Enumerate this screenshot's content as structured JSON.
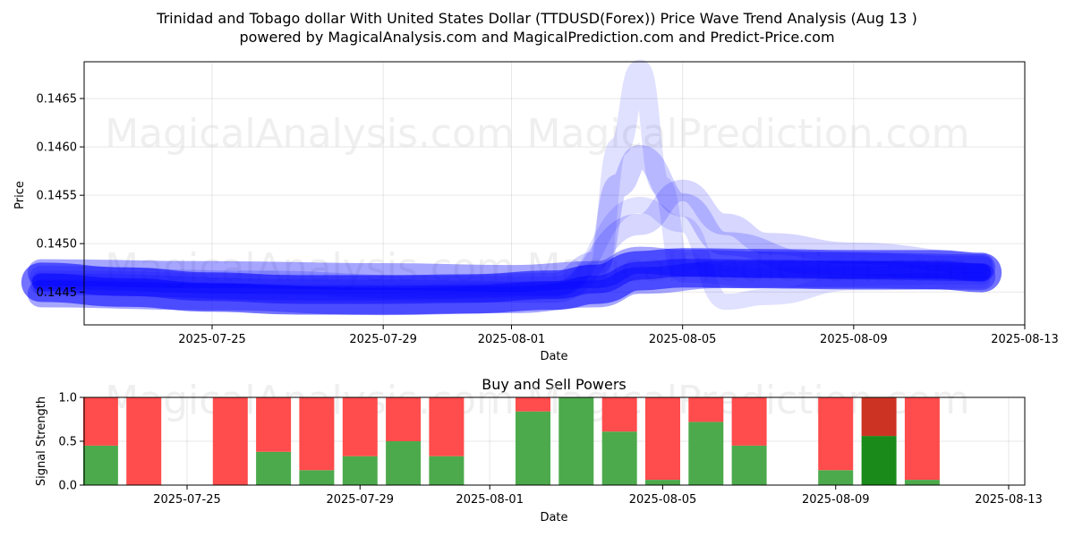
{
  "chart_data": [
    {
      "type": "line",
      "title": "Trinidad and Tobago dollar With United States Dollar (TTDUSD(Forex)) Price Wave Trend Analysis (Aug 13 )",
      "subtitle": "powered by MagicalAnalysis.com and MagicalPrediction.com and Predict-Price.com",
      "xlabel": "Date",
      "ylabel": "Price",
      "xlim": [
        "2025-07-21",
        "2025-08-13"
      ],
      "ylim": [
        0.14416,
        0.14688
      ],
      "x_ticks": [
        "2025-07-25",
        "2025-07-29",
        "2025-08-01",
        "2025-08-05",
        "2025-08-09",
        "2025-08-13"
      ],
      "y_ticks": [
        "0.1445",
        "0.1450",
        "0.1455",
        "0.1460",
        "0.1465"
      ],
      "grid": true,
      "colors": {
        "band": "#0000ff"
      },
      "series": [
        {
          "values": [
            [
              "2025-07-21",
              0.1446
            ],
            [
              "2025-07-23",
              0.14455
            ],
            [
              "2025-07-25",
              0.1445
            ],
            [
              "2025-07-27",
              0.14447
            ],
            [
              "2025-07-29",
              0.14447
            ],
            [
              "2025-07-31",
              0.14448
            ],
            [
              "2025-08-02",
              0.14452
            ],
            [
              "2025-08-03",
              0.14458
            ],
            [
              "2025-08-04",
              0.14472
            ],
            [
              "2025-08-05",
              0.14475
            ],
            [
              "2025-08-07",
              0.14474
            ],
            [
              "2025-08-09",
              0.14473
            ],
            [
              "2025-08-11",
              0.14473
            ],
            [
              "2025-08-12",
              0.1447
            ]
          ]
        },
        {
          "values": [
            [
              "2025-07-21",
              0.1447
            ],
            [
              "2025-07-25",
              0.14468
            ],
            [
              "2025-07-29",
              0.14466
            ],
            [
              "2025-08-01",
              0.14464
            ],
            [
              "2025-08-03",
              0.14468
            ],
            [
              "2025-08-04",
              0.14483
            ],
            [
              "2025-08-05",
              0.1448
            ],
            [
              "2025-08-07",
              0.14478
            ],
            [
              "2025-08-09",
              0.14477
            ],
            [
              "2025-08-12",
              0.14475
            ]
          ]
        },
        {
          "values": [
            [
              "2025-07-21",
              0.14448
            ],
            [
              "2025-07-25",
              0.14445
            ],
            [
              "2025-07-29",
              0.1444
            ],
            [
              "2025-08-01",
              0.14442
            ],
            [
              "2025-08-03",
              0.14448
            ],
            [
              "2025-08-04",
              0.14462
            ],
            [
              "2025-08-06",
              0.14468
            ],
            [
              "2025-08-09",
              0.14468
            ],
            [
              "2025-08-12",
              0.14466
            ]
          ]
        },
        {
          "values": [
            [
              "2025-07-21",
              0.14465
            ],
            [
              "2025-07-26",
              0.1446
            ],
            [
              "2025-07-30",
              0.14455
            ],
            [
              "2025-08-02",
              0.14458
            ],
            [
              "2025-08-03",
              0.1448
            ],
            [
              "2025-08-03.5",
              0.1456
            ],
            [
              "2025-08-04",
              0.1459
            ],
            [
              "2025-08-05",
              0.1454
            ],
            [
              "2025-08-06",
              0.145
            ],
            [
              "2025-08-08",
              0.1448
            ],
            [
              "2025-08-12",
              0.14475
            ]
          ]
        },
        {
          "values": [
            [
              "2025-07-21",
              0.14462
            ],
            [
              "2025-07-27",
              0.14458
            ],
            [
              "2025-08-02",
              0.14456
            ],
            [
              "2025-08-03",
              0.1447
            ],
            [
              "2025-08-03.5",
              0.146
            ],
            [
              "2025-08-04",
              0.1468
            ],
            [
              "2025-08-04.5",
              0.1456
            ],
            [
              "2025-08-05",
              0.1447
            ],
            [
              "2025-08-07",
              0.14465
            ],
            [
              "2025-08-12",
              0.14468
            ]
          ]
        },
        {
          "values": [
            [
              "2025-07-21",
              0.14458
            ],
            [
              "2025-07-28",
              0.14452
            ],
            [
              "2025-08-02",
              0.1445
            ],
            [
              "2025-08-04",
              0.1452
            ],
            [
              "2025-08-05",
              0.14555
            ],
            [
              "2025-08-06",
              0.1452
            ],
            [
              "2025-08-07",
              0.145
            ],
            [
              "2025-08-09",
              0.1449
            ],
            [
              "2025-08-12",
              0.1448
            ]
          ]
        },
        {
          "values": [
            [
              "2025-07-21",
              0.14455
            ],
            [
              "2025-07-28",
              0.1445
            ],
            [
              "2025-08-02",
              0.14452
            ],
            [
              "2025-08-04",
              0.1454
            ],
            [
              "2025-08-05",
              0.1452
            ],
            [
              "2025-08-06",
              0.1444
            ],
            [
              "2025-08-07",
              0.14445
            ],
            [
              "2025-08-09",
              0.1446
            ],
            [
              "2025-08-12",
              0.14462
            ]
          ]
        }
      ]
    },
    {
      "type": "bar",
      "title": "Buy and Sell Powers",
      "xlabel": "Date",
      "ylabel": "Signal Strength",
      "xlim": [
        "2025-07-21",
        "2025-08-13"
      ],
      "ylim": [
        0,
        1.0
      ],
      "x_ticks": [
        "2025-07-25",
        "2025-07-29",
        "2025-08-01",
        "2025-08-05",
        "2025-08-09",
        "2025-08-13"
      ],
      "y_ticks": [
        "0.0",
        "0.5",
        "1.0"
      ],
      "grid": true,
      "colors": {
        "buy": "#4caa4c",
        "sell": "#ff4c4c",
        "buy_strong": "#1a8a1a",
        "sell_strong": "#cc3322"
      },
      "categories": [
        "2025-07-23",
        "2025-07-24",
        "2025-07-26",
        "2025-07-27",
        "2025-07-28",
        "2025-07-29",
        "2025-07-30",
        "2025-07-31",
        "2025-08-02",
        "2025-08-03",
        "2025-08-04",
        "2025-08-05",
        "2025-08-06",
        "2025-08-07",
        "2025-08-09",
        "2025-08-10",
        "2025-08-11"
      ],
      "series": [
        {
          "name": "Buy",
          "values": [
            0.45,
            0.0,
            0.0,
            0.38,
            0.17,
            0.33,
            0.5,
            0.33,
            0.84,
            1.0,
            0.61,
            0.06,
            0.72,
            0.45,
            0.17,
            0.56,
            0.06
          ]
        },
        {
          "name": "Sell",
          "values": [
            0.55,
            1.0,
            1.0,
            0.62,
            0.83,
            0.67,
            0.5,
            0.67,
            0.16,
            0.0,
            0.39,
            0.94,
            0.28,
            0.55,
            0.83,
            0.44,
            0.94
          ]
        }
      ],
      "strong": [
        false,
        false,
        false,
        false,
        false,
        false,
        false,
        false,
        false,
        false,
        false,
        false,
        false,
        false,
        false,
        true,
        false
      ]
    }
  ],
  "watermark": {
    "left": "MagicalAnalysis.com",
    "right": "MagicalPrediction.com"
  }
}
